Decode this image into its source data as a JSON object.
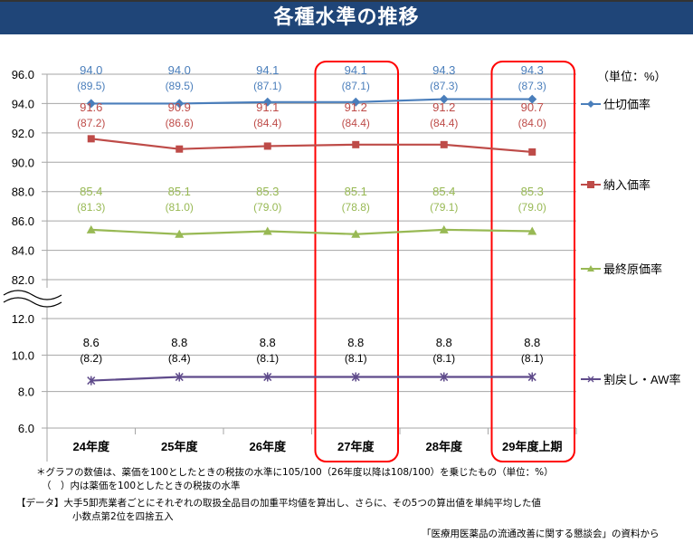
{
  "title": "各種水準の推移",
  "unit_label": "（単位：%）",
  "chart_data": {
    "type": "line",
    "categories": [
      "24年度",
      "25年度",
      "26年度",
      "27年度",
      "28年度",
      "29年度上期"
    ],
    "highlighted_categories": [
      "27年度",
      "29年度上期"
    ],
    "y_axis_upper": {
      "range": [
        82.0,
        96.0
      ],
      "ticks": [
        "82.0",
        "84.0",
        "86.0",
        "88.0",
        "90.0",
        "92.0",
        "94.0",
        "96.0"
      ]
    },
    "y_axis_lower": {
      "range": [
        6.0,
        12.0
      ],
      "ticks": [
        "6.0",
        "8.0",
        "10.0",
        "12.0"
      ]
    },
    "axis_break": true,
    "grid": true,
    "legend_position": "right",
    "series": [
      {
        "name": "仕切価率",
        "segment": "upper",
        "color": "#4a7ebb",
        "marker": "diamond",
        "values": [
          94.0,
          94.0,
          94.1,
          94.1,
          94.3,
          94.3
        ],
        "labels": [
          "94.0",
          "94.0",
          "94.1",
          "94.1",
          "94.3",
          "94.3"
        ],
        "sub_labels": [
          "(89.5)",
          "(89.5)",
          "(87.1)",
          "(87.1)",
          "(87.3)",
          "(87.3)"
        ]
      },
      {
        "name": "納入価率",
        "segment": "upper",
        "color": "#be4b48",
        "marker": "square",
        "values": [
          91.6,
          90.9,
          91.1,
          91.2,
          91.2,
          90.7
        ],
        "labels": [
          "91.6",
          "90.9",
          "91.1",
          "91.2",
          "91.2",
          "90.7"
        ],
        "sub_labels": [
          "(87.2)",
          "(86.6)",
          "(84.4)",
          "(84.4)",
          "(84.4)",
          "(84.0)"
        ]
      },
      {
        "name": "最終原価率",
        "segment": "upper",
        "color": "#98b954",
        "marker": "triangle",
        "values": [
          85.4,
          85.1,
          85.3,
          85.1,
          85.4,
          85.3
        ],
        "labels": [
          "85.4",
          "85.1",
          "85.3",
          "85.1",
          "85.4",
          "85.3"
        ],
        "sub_labels": [
          "(81.3)",
          "(81.0)",
          "(79.0)",
          "(78.8)",
          "(79.1)",
          "(79.0)"
        ]
      },
      {
        "name": "割戻し・AW率",
        "segment": "lower",
        "color": "#5f4b8b",
        "marker": "star",
        "values": [
          8.6,
          8.8,
          8.8,
          8.8,
          8.8,
          8.8
        ],
        "labels": [
          "8.6",
          "8.8",
          "8.8",
          "8.8",
          "8.8",
          "8.8"
        ],
        "sub_labels": [
          "(8.2)",
          "(8.4)",
          "(8.1)",
          "(8.1)",
          "(8.1)",
          "(8.1)"
        ]
      }
    ]
  },
  "notes": {
    "line1": "＊グラフの数値は、薬価を100としたときの税抜の水準に105/100（26年度以降は108/100）を乗じたもの（単位：%）",
    "line2": "（　）内は薬価を100としたときの税抜の水準",
    "line3": "【データ】大手5卸売業者ごとにそれぞれの取扱全品目の加重平均値を算出し、さらに、その5つの算出値を単純平均した値",
    "line4": "小数点第2位を四捨五入",
    "source": "「医療用医薬品の流通改善に関する懇談会」の資料から"
  }
}
